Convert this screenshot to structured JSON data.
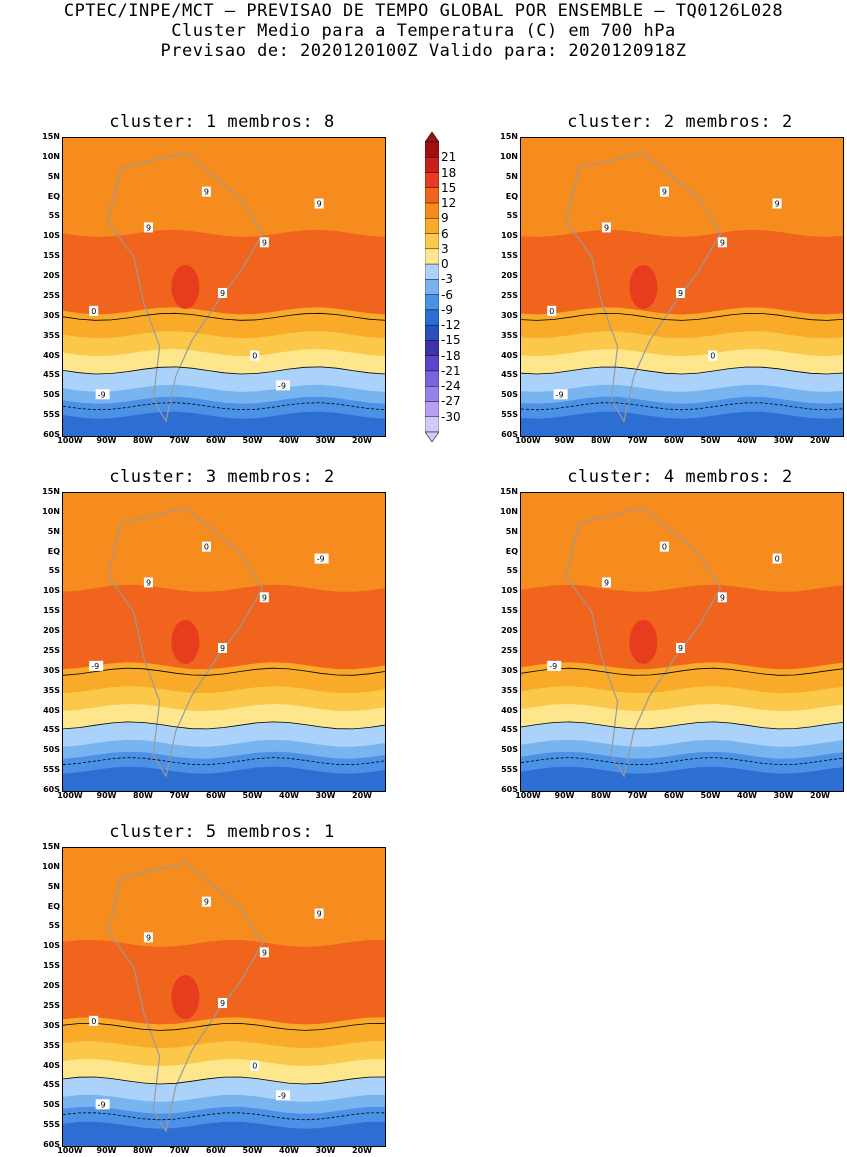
{
  "header": {
    "line1": "CPTEC/INPE/MCT – PREVISAO DE TEMPO GLOBAL POR ENSEMBLE – TQ0126L028",
    "line2": "Cluster Medio para a Temperatura (C) em 700 hPa",
    "line3": "Previsao de: 2020120100Z   Valido para: 2020120918Z"
  },
  "panels": [
    {
      "title": "cluster: 1   membros: 8",
      "contour_labels": [
        "9",
        "9",
        "9",
        "9",
        "9",
        "0",
        "0",
        "-9",
        "-9"
      ]
    },
    {
      "title": "cluster: 2   membros: 2",
      "contour_labels": [
        "9",
        "9",
        "9",
        "9",
        "9",
        "0",
        "0",
        "-9"
      ]
    },
    {
      "title": "cluster: 3   membros: 2",
      "contour_labels": [
        "9",
        "9",
        "9",
        "0",
        "-9",
        "-9"
      ]
    },
    {
      "title": "cluster: 4   membros: 2",
      "contour_labels": [
        "9",
        "9",
        "9",
        "0",
        "0",
        "-9"
      ]
    },
    {
      "title": "cluster: 5   membros: 1",
      "contour_labels": [
        "9",
        "9",
        "9",
        "9",
        "9",
        "0",
        "0",
        "-9",
        "-9"
      ]
    }
  ],
  "lat_ticks": [
    "15N",
    "10N",
    "5N",
    "EQ",
    "5S",
    "10S",
    "15S",
    "20S",
    "25S",
    "30S",
    "35S",
    "40S",
    "45S",
    "50S",
    "55S",
    "60S"
  ],
  "lon_ticks": [
    "100W",
    "90W",
    "80W",
    "70W",
    "60W",
    "50W",
    "40W",
    "30W",
    "20W"
  ],
  "colorbar": {
    "labels": [
      "21",
      "18",
      "15",
      "12",
      "9",
      "6",
      "3",
      "0",
      "-3",
      "-6",
      "-9",
      "-12",
      "-15",
      "-18",
      "-21",
      "-24",
      "-27",
      "-30"
    ],
    "colors": [
      "#a01010",
      "#c81e1e",
      "#e83c1e",
      "#f0641e",
      "#f68c1e",
      "#f8aa28",
      "#fbc84a",
      "#fde68c",
      "#aad2fa",
      "#78b4f0",
      "#4b91e6",
      "#2d6ed2",
      "#2850be",
      "#3c32aa",
      "#5a46c8",
      "#7864dc",
      "#9682e6",
      "#b4a0f0",
      "#d2c8fa"
    ]
  }
}
